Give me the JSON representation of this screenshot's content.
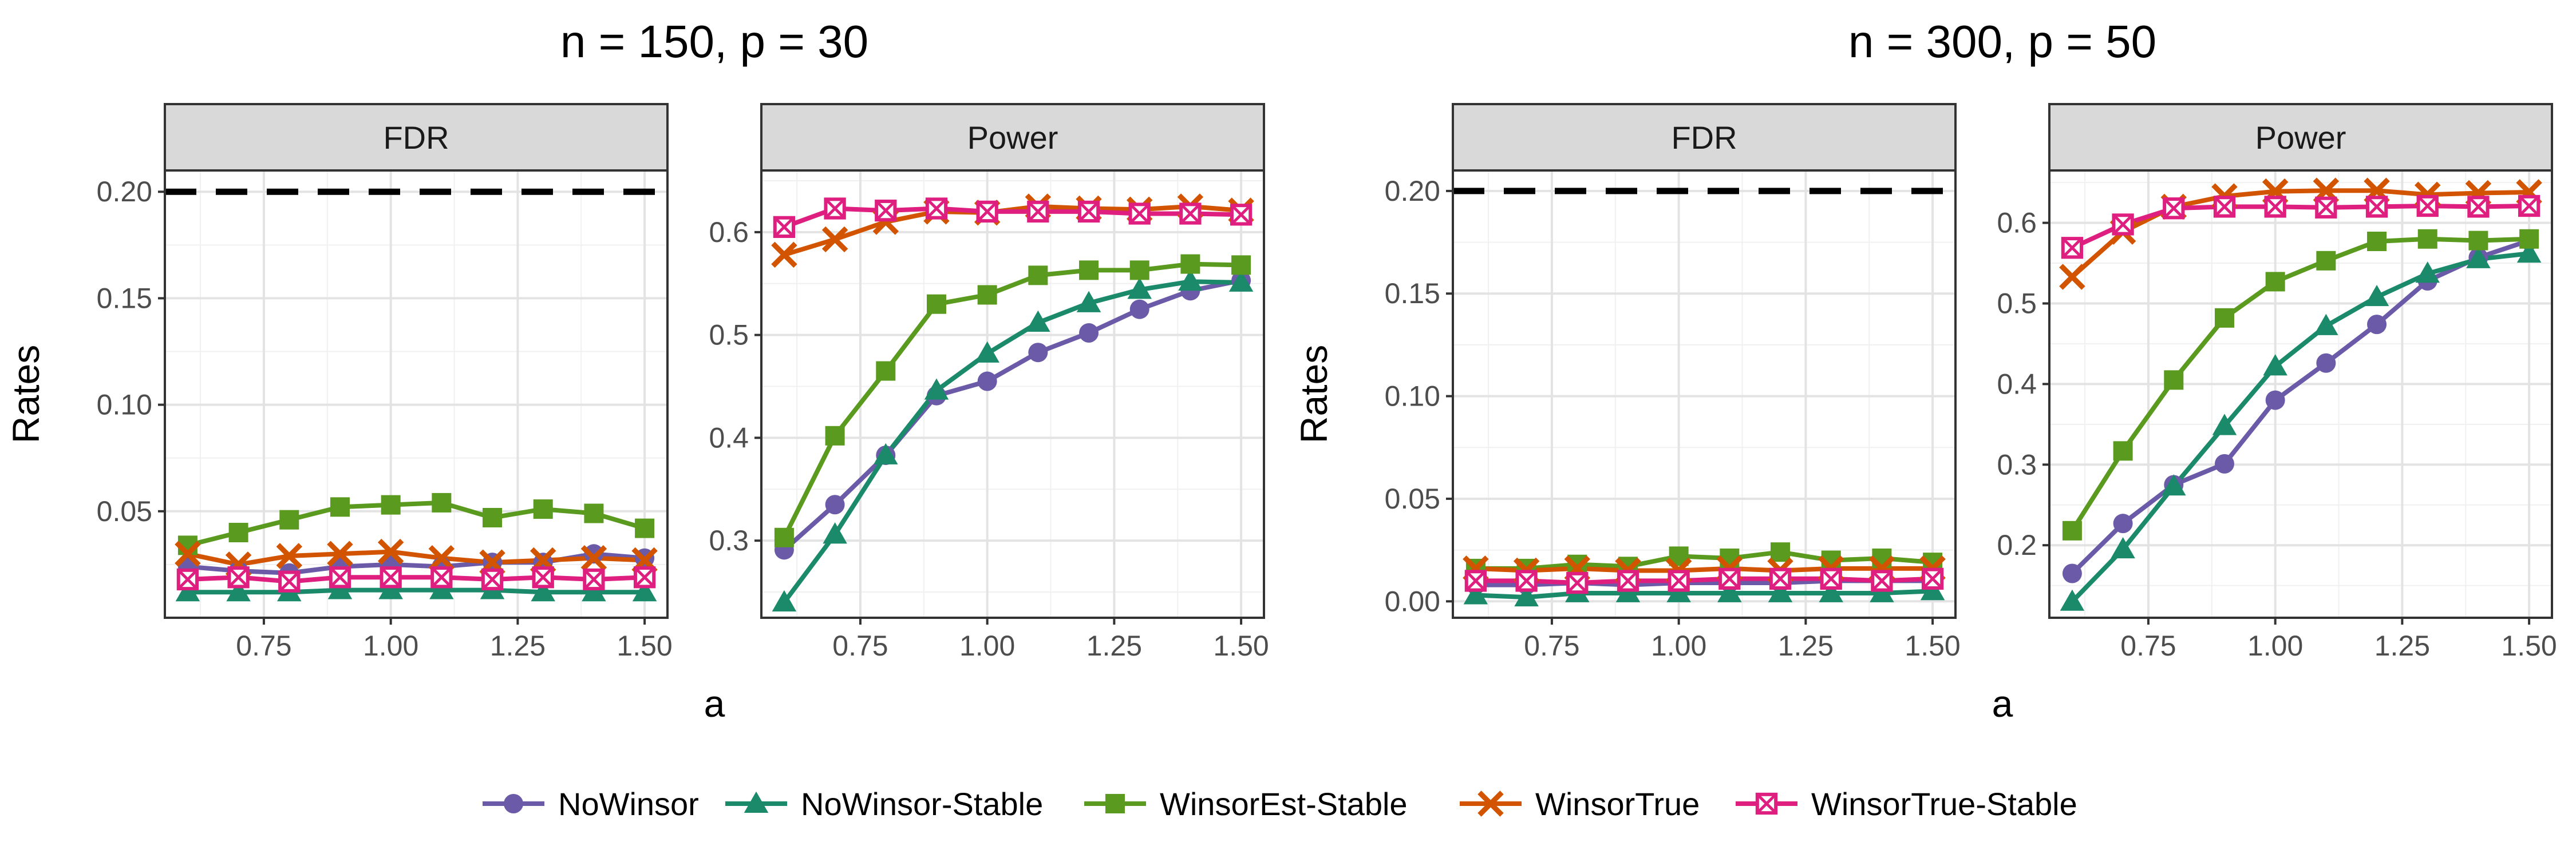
{
  "chart_data": [
    {
      "type": "line",
      "title": "n = 150, p = 30",
      "ylabel": "Rates",
      "xlabel": "a",
      "panels": [
        {
          "label": "FDR",
          "x": [
            0.6,
            0.7,
            0.8,
            0.9,
            1.0,
            1.1,
            1.2,
            1.3,
            1.4,
            1.5
          ],
          "ylim": [
            0.0,
            0.21
          ],
          "yticks": [
            0.05,
            0.1,
            0.15,
            0.2
          ],
          "ytick_labels": [
            "0.05",
            "0.10",
            "0.15",
            "0.20"
          ],
          "reference_line": 0.2,
          "series": [
            {
              "name": "NoWinsor",
              "values": [
                0.024,
                0.022,
                0.021,
                0.024,
                0.025,
                0.024,
                0.026,
                0.026,
                0.03,
                0.028
              ]
            },
            {
              "name": "NoWinsor-Stable",
              "values": [
                0.012,
                0.012,
                0.012,
                0.013,
                0.013,
                0.013,
                0.013,
                0.012,
                0.012,
                0.012
              ]
            },
            {
              "name": "WinsorEst-Stable",
              "values": [
                0.034,
                0.04,
                0.046,
                0.052,
                0.053,
                0.054,
                0.047,
                0.051,
                0.049,
                0.042
              ]
            },
            {
              "name": "WinsorTrue",
              "values": [
                0.03,
                0.025,
                0.029,
                0.03,
                0.031,
                0.028,
                0.026,
                0.027,
                0.028,
                0.027
              ]
            },
            {
              "name": "WinsorTrue-Stable",
              "values": [
                0.018,
                0.019,
                0.017,
                0.019,
                0.019,
                0.019,
                0.018,
                0.019,
                0.018,
                0.019
              ]
            }
          ]
        },
        {
          "label": "Power",
          "x": [
            0.6,
            0.7,
            0.8,
            0.9,
            1.0,
            1.1,
            1.2,
            1.3,
            1.4,
            1.5
          ],
          "ylim": [
            0.225,
            0.66
          ],
          "yticks": [
            0.3,
            0.4,
            0.5,
            0.6
          ],
          "ytick_labels": [
            "0.3",
            "0.4",
            "0.5",
            "0.6"
          ],
          "series": [
            {
              "name": "NoWinsor",
              "values": [
                0.291,
                0.335,
                0.383,
                0.441,
                0.455,
                0.483,
                0.502,
                0.525,
                0.543,
                0.553
              ]
            },
            {
              "name": "NoWinsor-Stable",
              "values": [
                0.24,
                0.306,
                0.383,
                0.446,
                0.482,
                0.512,
                0.531,
                0.544,
                0.552,
                0.551
              ]
            },
            {
              "name": "WinsorEst-Stable",
              "values": [
                0.303,
                0.402,
                0.465,
                0.53,
                0.539,
                0.558,
                0.563,
                0.563,
                0.569,
                0.568
              ]
            },
            {
              "name": "WinsorTrue",
              "values": [
                0.578,
                0.593,
                0.61,
                0.62,
                0.619,
                0.625,
                0.623,
                0.622,
                0.625,
                0.621
              ]
            },
            {
              "name": "WinsorTrue-Stable",
              "values": [
                0.605,
                0.623,
                0.621,
                0.623,
                0.62,
                0.62,
                0.62,
                0.618,
                0.618,
                0.617
              ]
            }
          ]
        }
      ]
    },
    {
      "type": "line",
      "title": "n = 300, p = 50",
      "ylabel": "Rates",
      "xlabel": "a",
      "panels": [
        {
          "label": "FDR",
          "x": [
            0.6,
            0.7,
            0.8,
            0.9,
            1.0,
            1.1,
            1.2,
            1.3,
            1.4,
            1.5
          ],
          "ylim": [
            -0.008,
            0.21
          ],
          "yticks": [
            0.0,
            0.05,
            0.1,
            0.15,
            0.2
          ],
          "ytick_labels": [
            "0.00",
            "0.05",
            "0.10",
            "0.15",
            "0.20"
          ],
          "reference_line": 0.2,
          "series": [
            {
              "name": "NoWinsor",
              "values": [
                0.008,
                0.008,
                0.009,
                0.008,
                0.009,
                0.009,
                0.009,
                0.01,
                0.01,
                0.01
              ]
            },
            {
              "name": "NoWinsor-Stable",
              "values": [
                0.003,
                0.002,
                0.004,
                0.004,
                0.004,
                0.004,
                0.004,
                0.004,
                0.004,
                0.005
              ]
            },
            {
              "name": "WinsorEst-Stable",
              "values": [
                0.016,
                0.016,
                0.018,
                0.017,
                0.022,
                0.021,
                0.024,
                0.02,
                0.021,
                0.019
              ]
            },
            {
              "name": "WinsorTrue",
              "values": [
                0.016,
                0.015,
                0.016,
                0.015,
                0.015,
                0.016,
                0.015,
                0.016,
                0.016,
                0.016
              ]
            },
            {
              "name": "WinsorTrue-Stable",
              "values": [
                0.01,
                0.01,
                0.009,
                0.01,
                0.01,
                0.011,
                0.011,
                0.011,
                0.01,
                0.011
              ]
            }
          ]
        },
        {
          "label": "Power",
          "x": [
            0.6,
            0.7,
            0.8,
            0.9,
            1.0,
            1.1,
            1.2,
            1.3,
            1.4,
            1.5
          ],
          "ylim": [
            0.11,
            0.665
          ],
          "yticks": [
            0.2,
            0.3,
            0.4,
            0.5,
            0.6
          ],
          "ytick_labels": [
            "0.2",
            "0.3",
            "0.4",
            "0.5",
            "0.6"
          ],
          "series": [
            {
              "name": "NoWinsor",
              "values": [
                0.165,
                0.227,
                0.275,
                0.301,
                0.38,
                0.426,
                0.474,
                0.528,
                0.557,
                0.578
              ]
            },
            {
              "name": "NoWinsor-Stable",
              "values": [
                0.13,
                0.195,
                0.273,
                0.348,
                0.422,
                0.472,
                0.508,
                0.537,
                0.555,
                0.562
              ]
            },
            {
              "name": "WinsorEst-Stable",
              "values": [
                0.218,
                0.317,
                0.405,
                0.482,
                0.527,
                0.553,
                0.577,
                0.58,
                0.578,
                0.58
              ]
            },
            {
              "name": "WinsorTrue",
              "values": [
                0.533,
                0.589,
                0.62,
                0.633,
                0.639,
                0.64,
                0.64,
                0.635,
                0.637,
                0.638
              ]
            },
            {
              "name": "WinsorTrue-Stable",
              "values": [
                0.569,
                0.598,
                0.618,
                0.62,
                0.62,
                0.619,
                0.62,
                0.621,
                0.62,
                0.621
              ]
            }
          ]
        }
      ]
    }
  ],
  "legend": {
    "position": "bottom",
    "items": [
      {
        "name": "NoWinsor",
        "color": "#6a5aa8",
        "shape": "circle"
      },
      {
        "name": "NoWinsor-Stable",
        "color": "#1b8a6b",
        "shape": "triangle"
      },
      {
        "name": "WinsorEst-Stable",
        "color": "#5a9a1e",
        "shape": "square"
      },
      {
        "name": "WinsorTrue",
        "color": "#d35400",
        "shape": "cross"
      },
      {
        "name": "WinsorTrue-Stable",
        "color": "#de1f7f",
        "shape": "boxed-x"
      }
    ]
  },
  "x_tick_labels": [
    "0.75",
    "1.00",
    "1.25",
    "1.50"
  ]
}
